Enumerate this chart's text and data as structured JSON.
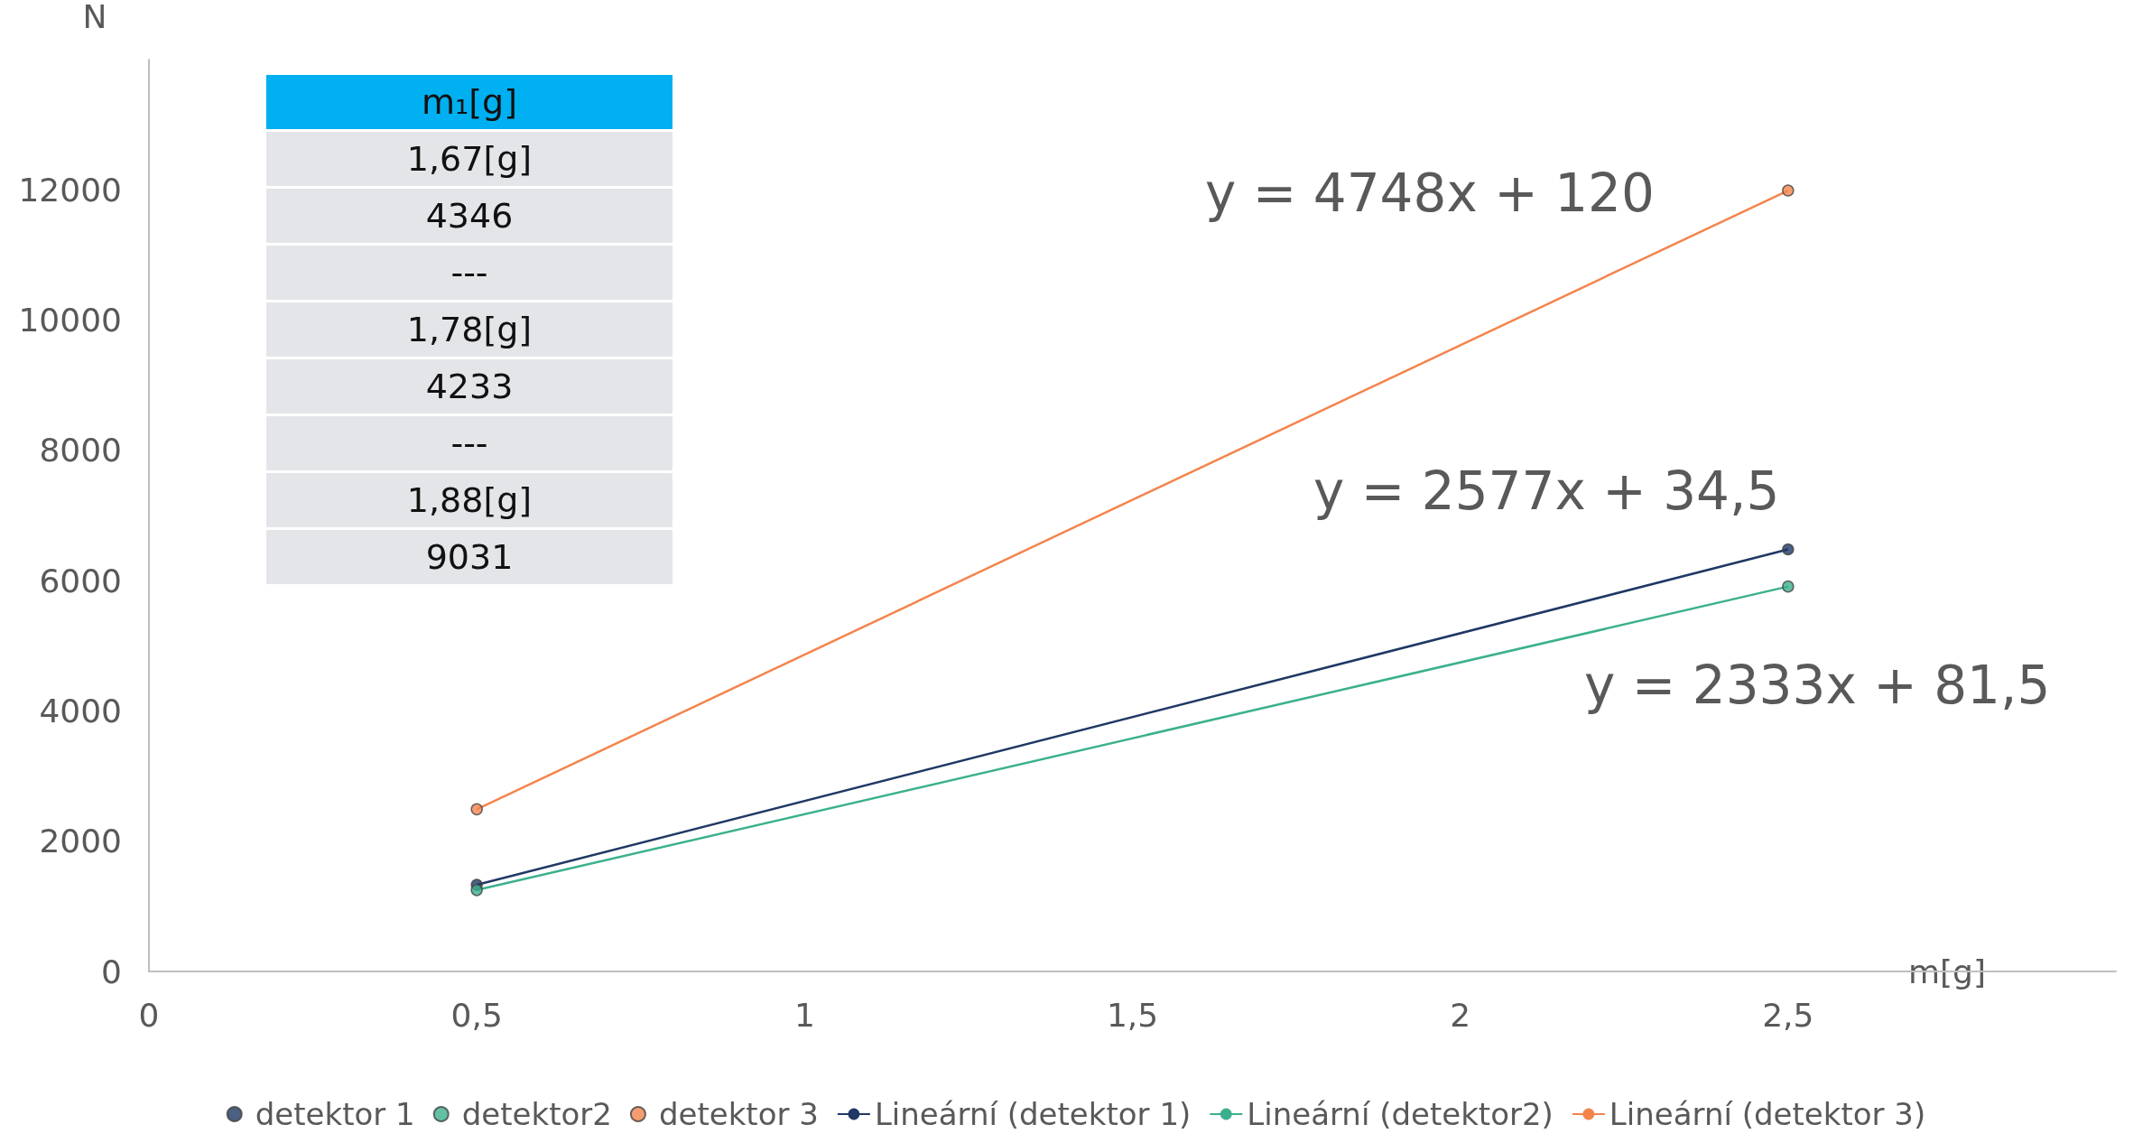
{
  "chart_data": {
    "type": "scatter",
    "xlabel": "m[g]",
    "ylabel": "N",
    "x": [
      0.5,
      2.5
    ],
    "xlim": [
      0,
      3
    ],
    "xticks": [
      0,
      {
        "value": 0.5,
        "label": "0,5"
      },
      1,
      {
        "value": 1.5,
        "label": "1,5"
      },
      2,
      {
        "value": 2.5,
        "label": "2,5"
      }
    ],
    "ylim": [
      0,
      14000
    ],
    "yticks": [
      0,
      2000,
      4000,
      6000,
      8000,
      10000,
      12000
    ],
    "grid": false,
    "legend": "bottom",
    "marker": "circle",
    "series": [
      {
        "name": "detektor 1",
        "type": "scatter",
        "color": "#1f3864",
        "values": [
          1330,
          6480
        ]
      },
      {
        "name": "detektor2",
        "type": "scatter",
        "color": "#3cb08e",
        "values": [
          1250,
          5910
        ]
      },
      {
        "name": "detektor 3",
        "type": "scatter",
        "color": "#f4844c",
        "values": [
          2490,
          11990
        ]
      },
      {
        "name": "Lineární (detektor 1)",
        "type": "line",
        "marker": "none",
        "color": "#1f3864",
        "values": [
          1330,
          6480
        ]
      },
      {
        "name": "Lineární (detektor2)",
        "type": "line",
        "marker": "none",
        "color": "#3cb08e",
        "values": [
          1250,
          5910
        ]
      },
      {
        "name": "Lineární (detektor 3)",
        "type": "line",
        "marker": "none",
        "color": "#f4844c",
        "values": [
          2490,
          11990
        ]
      }
    ],
    "annotations": [
      "m₁[g]",
      "1,67[g]",
      "4346",
      "---",
      "1,78[g]",
      "4233",
      "---",
      "1,88[g]",
      "9031",
      "y = 4748x + 120",
      "y = 2577x + 34,5",
      "y = 2333x + 81,5"
    ]
  }
}
